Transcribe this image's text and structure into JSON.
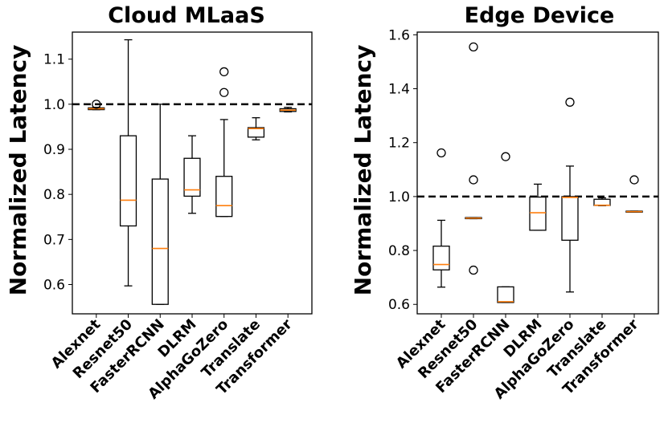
{
  "chart_data": [
    {
      "type": "box",
      "title": "Cloud MLaaS",
      "ylabel": "Normalized Latency",
      "xlabel": "",
      "ylim": [
        0.535,
        1.16
      ],
      "yticks": [
        0.6,
        0.7,
        0.8,
        0.9,
        1.0,
        1.1
      ],
      "ytick_labels": [
        "0.6",
        "0.7",
        "0.8",
        "0.9",
        "1.0",
        "1.1"
      ],
      "reference_line": 1.0,
      "categories": [
        "Alexnet",
        "Resnet50",
        "FasterRCNN",
        "DLRM",
        "AlphaGoZero",
        "Translate",
        "Transformer"
      ],
      "boxes": [
        {
          "q1": 0.988,
          "median": 0.99,
          "q3": 0.992,
          "whisker_low": 0.988,
          "whisker_high": 0.993,
          "fliers": [
            1.0
          ]
        },
        {
          "q1": 0.73,
          "median": 0.787,
          "q3": 0.93,
          "whisker_low": 0.597,
          "whisker_high": 1.143,
          "fliers": []
        },
        {
          "q1": 0.556,
          "median": 0.68,
          "q3": 0.834,
          "whisker_low": 0.556,
          "whisker_high": 1.0,
          "fliers": []
        },
        {
          "q1": 0.796,
          "median": 0.81,
          "q3": 0.88,
          "whisker_low": 0.758,
          "whisker_high": 0.93,
          "fliers": []
        },
        {
          "q1": 0.751,
          "median": 0.775,
          "q3": 0.84,
          "whisker_low": 0.751,
          "whisker_high": 0.966,
          "fliers": [
            1.026,
            1.072
          ]
        },
        {
          "q1": 0.927,
          "median": 0.946,
          "q3": 0.948,
          "whisker_low": 0.921,
          "whisker_high": 0.97,
          "fliers": []
        },
        {
          "q1": 0.984,
          "median": 0.987,
          "q3": 0.99,
          "whisker_low": 0.983,
          "whisker_high": 0.993,
          "fliers": []
        }
      ]
    },
    {
      "type": "box",
      "title": "Edge Device",
      "ylabel": "Normalized Latency",
      "xlabel": "",
      "ylim": [
        0.565,
        1.61
      ],
      "yticks": [
        0.6,
        0.8,
        1.0,
        1.2,
        1.4,
        1.6
      ],
      "ytick_labels": [
        "0.6",
        "0.8",
        "1.0",
        "1.2",
        "1.4",
        "1.6"
      ],
      "reference_line": 1.0,
      "categories": [
        "Alexnet",
        "Resnet50",
        "FasterRCNN",
        "DLRM",
        "AlphaGoZero",
        "Translate",
        "Transformer"
      ],
      "boxes": [
        {
          "q1": 0.728,
          "median": 0.748,
          "q3": 0.816,
          "whisker_low": 0.664,
          "whisker_high": 0.912,
          "fliers": [
            1.162
          ]
        },
        {
          "q1": 0.918,
          "median": 0.92,
          "q3": 0.922,
          "whisker_low": 0.918,
          "whisker_high": 0.922,
          "fliers": [
            0.727,
            1.062,
            1.555
          ]
        },
        {
          "q1": 0.607,
          "median": 0.61,
          "q3": 0.665,
          "whisker_low": 0.607,
          "whisker_high": 0.665,
          "fliers": [
            1.148
          ]
        },
        {
          "q1": 0.875,
          "median": 0.94,
          "q3": 0.998,
          "whisker_low": 0.875,
          "whisker_high": 1.046,
          "fliers": []
        },
        {
          "q1": 0.838,
          "median": 0.997,
          "q3": 1.0,
          "whisker_low": 0.646,
          "whisker_high": 1.113,
          "fliers": [
            1.35
          ]
        },
        {
          "q1": 0.967,
          "median": 0.968,
          "q3": 0.99,
          "whisker_low": 0.966,
          "whisker_high": 0.995,
          "fliers": []
        },
        {
          "q1": 0.942,
          "median": 0.944,
          "q3": 0.946,
          "whisker_low": 0.942,
          "whisker_high": 0.946,
          "fliers": [
            1.062
          ]
        }
      ]
    }
  ],
  "colors": {
    "median": "#ff7f0e",
    "box": "#000000",
    "reference": "#000000"
  }
}
